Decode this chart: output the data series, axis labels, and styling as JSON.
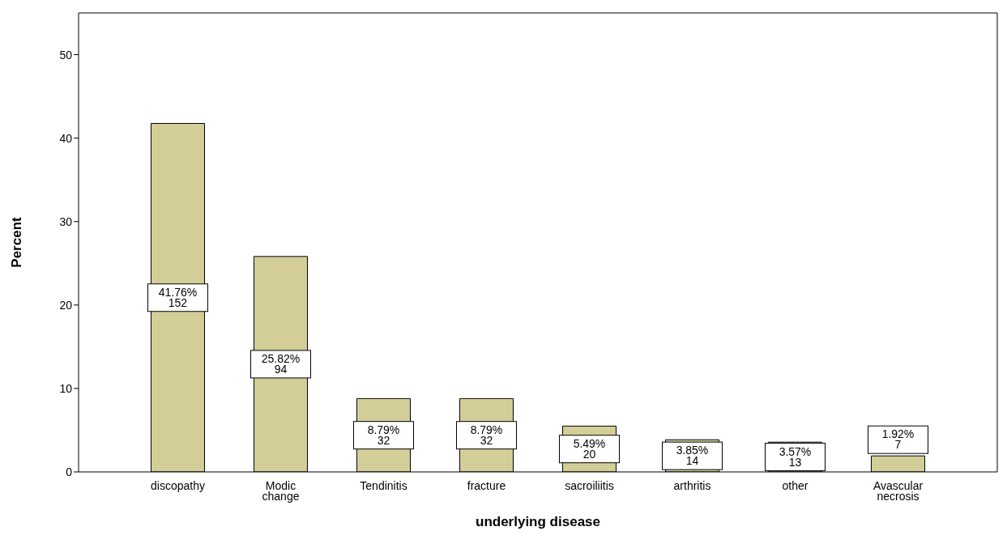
{
  "chart_data": {
    "type": "bar",
    "xlabel": "underlying disease",
    "ylabel": "Percent",
    "categories": [
      "discopathy",
      "Modic change",
      "Tendinitis",
      "fracture",
      "sacroiliitis",
      "arthritis",
      "other",
      "Avascular necrosis"
    ],
    "values": [
      41.76,
      25.82,
      8.79,
      8.79,
      5.49,
      3.85,
      3.57,
      1.92
    ],
    "value_labels": [
      "41.76%\n152",
      "25.82%\n94",
      "8.79%\n32",
      "8.79%\n32",
      "5.49%\n20",
      "3.85%\n14",
      "3.57%\n13",
      "1.92%\n7"
    ],
    "color": "#d3ce98",
    "ylim": [
      0,
      55
    ],
    "yticks": [
      0,
      10,
      20,
      30,
      40,
      50
    ],
    "grid": false,
    "legend": false
  }
}
